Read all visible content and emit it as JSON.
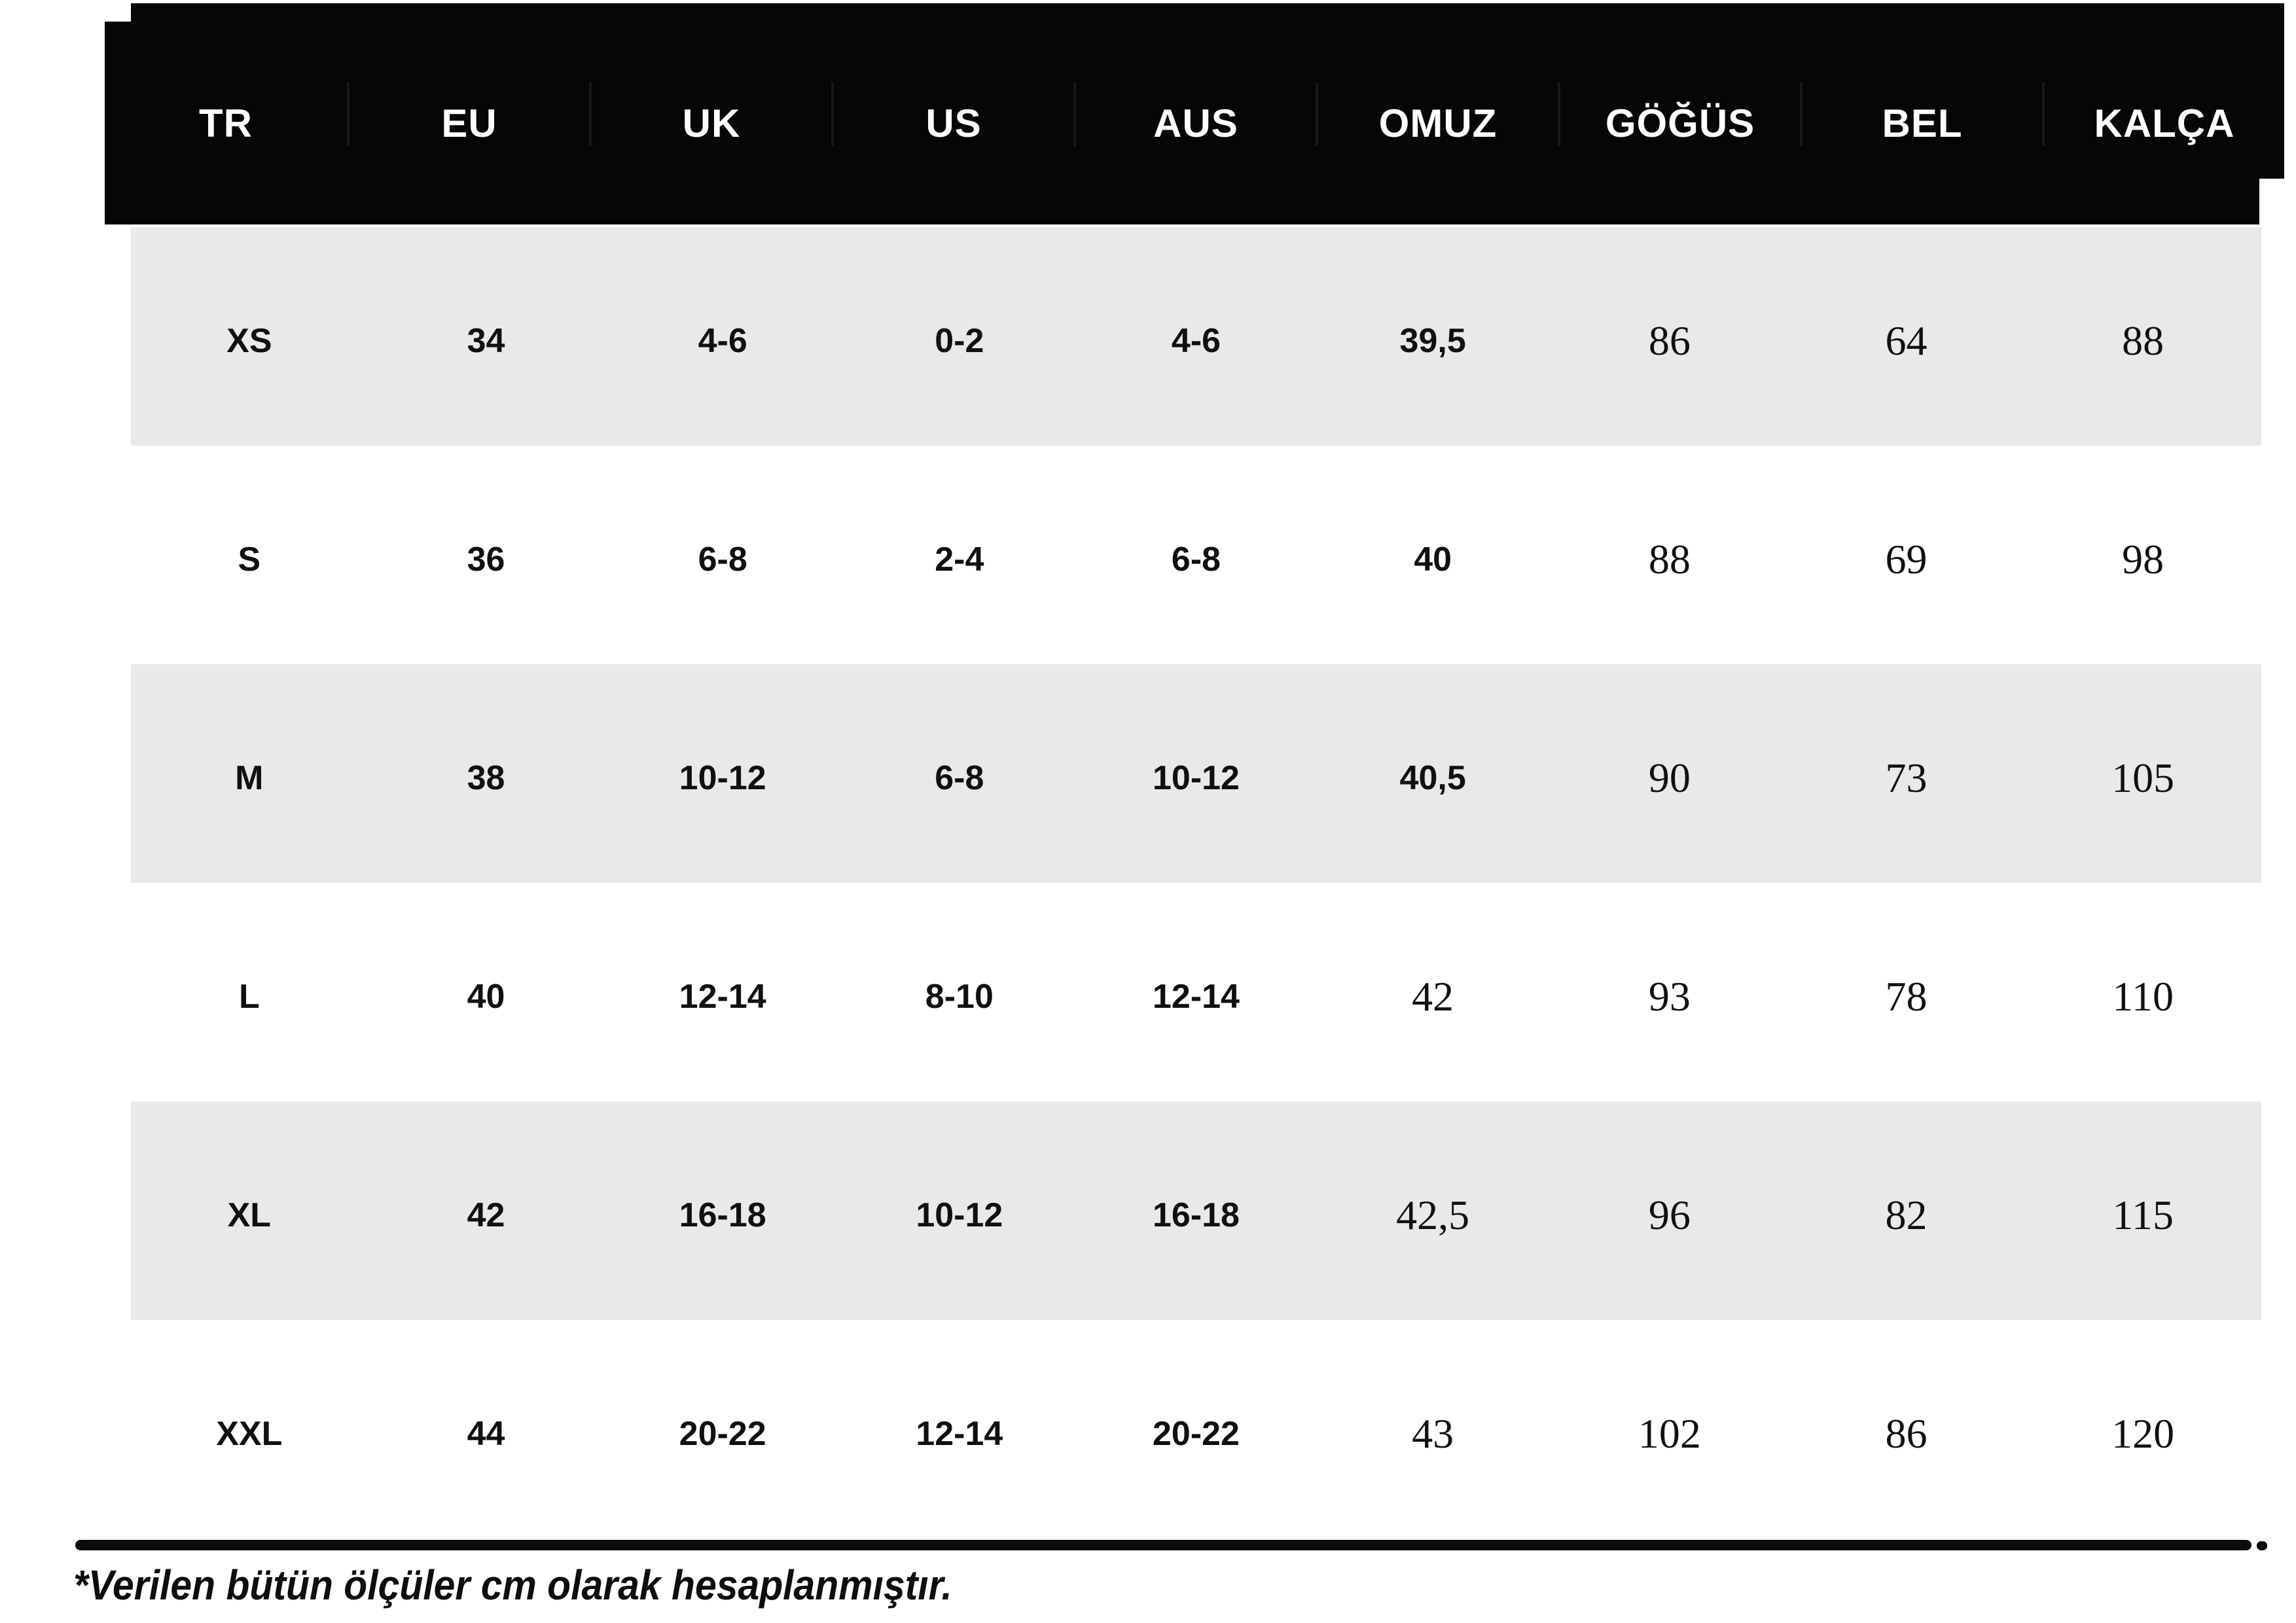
{
  "table": {
    "columns": [
      "TR",
      "EU",
      "UK",
      "US",
      "AUS",
      "OMUZ",
      "GÖĞÜS",
      "BEL",
      "KALÇA"
    ],
    "rows": [
      {
        "cells": [
          "XS",
          "34",
          "4-6",
          "0-2",
          "4-6",
          "39,5",
          "86",
          "64",
          "88"
        ]
      },
      {
        "cells": [
          "S",
          "36",
          "6-8",
          "2-4",
          "6-8",
          "40",
          "88",
          "69",
          "98"
        ]
      },
      {
        "cells": [
          "M",
          "38",
          "10-12",
          "6-8",
          "10-12",
          "40,5",
          "90",
          "73",
          "105"
        ]
      },
      {
        "cells": [
          "L",
          "40",
          "12-14",
          "8-10",
          "12-14",
          "42",
          "93",
          "78",
          "110"
        ]
      },
      {
        "cells": [
          "XL",
          "42",
          "16-18",
          "10-12",
          "16-18",
          "42,5",
          "96",
          "82",
          "115"
        ]
      },
      {
        "cells": [
          "XXL",
          "44",
          "20-22",
          "12-14",
          "20-22",
          "43",
          "102",
          "86",
          "120"
        ]
      }
    ]
  },
  "footnote": "*Verilen bütün ölçüler cm olarak hesaplanmıştır.",
  "colors": {
    "page_bg": "#ffffff",
    "header_bg": "#060606",
    "header_text": "#ffffff",
    "row_bg": "#ffffff",
    "row_alt_bg": "#e9e9e9",
    "text": "#101010",
    "rule": "#0b0b0b"
  }
}
